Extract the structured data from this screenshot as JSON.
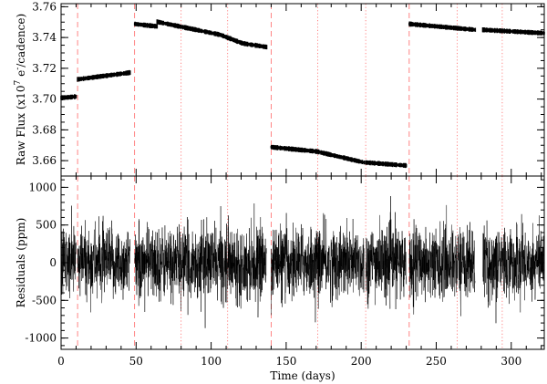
{
  "chart_data": [
    {
      "type": "scatter",
      "panel": "top",
      "ylabel_text": "Raw Flux (x10",
      "ylabel_exp": "7",
      "ylabel_unit_base": " e",
      "ylabel_unit_exp": "-",
      "ylabel_tail": "/cadence)",
      "xlim": [
        0,
        322
      ],
      "ylim": [
        3.65,
        3.762
      ],
      "yticks": [
        3.66,
        3.68,
        3.7,
        3.72,
        3.74,
        3.76
      ],
      "ytick_labels": [
        "3.66",
        "3.68",
        "3.70",
        "3.72",
        "3.74",
        "3.76"
      ],
      "segments": [
        {
          "x": [
            0,
            10
          ],
          "y": [
            3.7008,
            3.7016
          ]
        },
        {
          "x": [
            11,
            46
          ],
          "y": [
            3.7128,
            3.7172
          ]
        },
        {
          "x": [
            49,
            64
          ],
          "y": [
            3.7488,
            3.7472
          ]
        },
        {
          "x": [
            64,
            106
          ],
          "y": [
            3.7502,
            3.7418
          ]
        },
        {
          "x": [
            106,
            121
          ],
          "y": [
            3.7418,
            3.7362
          ]
        },
        {
          "x": [
            121,
            137
          ],
          "y": [
            3.7362,
            3.7338
          ]
        },
        {
          "x": [
            140,
            170
          ],
          "y": [
            3.6688,
            3.666
          ]
        },
        {
          "x": [
            170,
            202
          ],
          "y": [
            3.666,
            3.6588
          ]
        },
        {
          "x": [
            203,
            230
          ],
          "y": [
            3.6588,
            3.6568
          ]
        },
        {
          "x": [
            232,
            276
          ],
          "y": [
            3.7488,
            3.745
          ]
        },
        {
          "x": [
            281,
            322
          ],
          "y": [
            3.745,
            3.7428
          ]
        }
      ]
    },
    {
      "type": "line",
      "panel": "bottom",
      "ylabel": "Residuals (ppm)",
      "xlabel": "Time (days)",
      "xlim": [
        0,
        322
      ],
      "ylim": [
        -1150,
        1150
      ],
      "yticks": [
        -1000,
        -500,
        0,
        500,
        1000
      ],
      "ytick_labels": [
        "-1000",
        "-500",
        "0",
        "500",
        "1000"
      ],
      "xticks": [
        0,
        50,
        100,
        150,
        200,
        250,
        300
      ],
      "xtick_labels": [
        "0",
        "50",
        "100",
        "150",
        "200",
        "250",
        "300"
      ],
      "typical_amplitude_ppm": 420,
      "gaps": [
        [
          10,
          11
        ],
        [
          46,
          49
        ],
        [
          137,
          140
        ],
        [
          202,
          203
        ],
        [
          230,
          232
        ],
        [
          276,
          281
        ]
      ]
    }
  ],
  "quarter_boundaries_dashed": [
    11,
    49,
    140,
    232
  ],
  "month_boundaries_dotted": [
    80,
    111,
    171,
    203,
    264,
    294
  ],
  "colors": {
    "data": "#000000",
    "boundary": "#ff6666"
  }
}
